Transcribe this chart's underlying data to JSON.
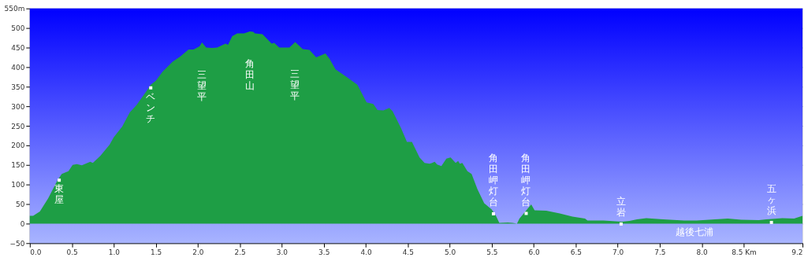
{
  "chart_data": {
    "type": "area",
    "xlim": [
      0,
      9.2
    ],
    "xticks": [
      {
        "value": 0,
        "label": "0.0"
      },
      {
        "value": 0.5,
        "label": "0.5"
      },
      {
        "value": 1,
        "label": "1.0"
      },
      {
        "value": 1.5,
        "label": "1.5"
      },
      {
        "value": 2,
        "label": "2.0"
      },
      {
        "value": 2.5,
        "label": "2.5"
      },
      {
        "value": 3,
        "label": "3.0"
      },
      {
        "value": 3.5,
        "label": "3.5"
      },
      {
        "value": 4,
        "label": "4.0"
      },
      {
        "value": 4.5,
        "label": "4.5"
      },
      {
        "value": 5,
        "label": "5.0"
      },
      {
        "value": 5.5,
        "label": "5.5"
      },
      {
        "value": 6,
        "label": "6.0"
      },
      {
        "value": 6.5,
        "label": "6.5"
      },
      {
        "value": 7,
        "label": "7.0"
      },
      {
        "value": 7.5,
        "label": "7.5"
      },
      {
        "value": 8,
        "label": "8.0"
      },
      {
        "value": 8.5,
        "label": "8.5 Km"
      },
      {
        "value": 9.2,
        "label": "9.2"
      }
    ],
    "ylim": [
      -50,
      550
    ],
    "yticks": [
      -50,
      0,
      50,
      100,
      150,
      200,
      250,
      300,
      350,
      400,
      450,
      500,
      {
        "value": 550,
        "label": "550m"
      }
    ],
    "grid": "y",
    "series": [
      {
        "color": "#1e9e45",
        "x": [
          0,
          0.04,
          0.12,
          0.22,
          0.33,
          0.38,
          0.46,
          0.51,
          0.56,
          0.62,
          0.72,
          0.75,
          0.84,
          0.95,
          1.0,
          1.1,
          1.19,
          1.27,
          1.38,
          1.44,
          1.5,
          1.58,
          1.7,
          1.79,
          1.89,
          1.95,
          2.02,
          2.05,
          2.1,
          2.17,
          2.23,
          2.33,
          2.36,
          2.41,
          2.47,
          2.55,
          2.62,
          2.66,
          2.68,
          2.77,
          2.88,
          2.91,
          2.97,
          3.03,
          3.09,
          3.16,
          3.25,
          3.33,
          3.41,
          3.52,
          3.57,
          3.64,
          3.77,
          3.9,
          4.01,
          4.09,
          4.14,
          4.21,
          4.28,
          4.32,
          4.42,
          4.49,
          4.55,
          4.64,
          4.7,
          4.76,
          4.79,
          4.82,
          4.85,
          4.9,
          4.96,
          5.01,
          5.04,
          5.07,
          5.1,
          5.12,
          5.15,
          5.21,
          5.26,
          5.33,
          5.41,
          5.5,
          5.55,
          5.59,
          5.69,
          5.75,
          5.8,
          5.83,
          5.9,
          5.97,
          6.01,
          6.15,
          6.31,
          6.46,
          6.61,
          6.64,
          6.83,
          7.05,
          7.14,
          7.23,
          7.34,
          7.54,
          7.79,
          7.94,
          8.16,
          8.31,
          8.47,
          8.68,
          8.77,
          8.96,
          9.1,
          9.2
        ],
        "values": [
          20,
          20,
          31,
          65,
          111,
          127,
          134,
          150,
          152,
          149,
          158,
          155,
          173,
          202,
          221,
          248,
          284,
          303,
          336,
          355,
          365,
          388,
          414,
          427,
          445,
          445,
          453,
          463,
          450,
          449,
          450,
          460,
          457,
          479,
          486,
          486,
          491,
          490,
          486,
          484,
          460,
          462,
          450,
          450,
          450,
          464,
          446,
          444,
          425,
          435,
          421,
          394,
          375,
          355,
          310,
          306,
          290,
          289,
          296,
          287,
          244,
          209,
          209,
          169,
          155,
          153,
          155,
          158,
          151,
          147,
          166,
          169,
          162,
          155,
          160,
          153,
          155,
          134,
          127,
          88,
          52,
          36,
          20,
          2,
          3,
          2,
          0,
          13,
          31,
          49,
          34,
          33,
          26,
          18,
          13,
          8,
          8,
          5,
          7,
          11,
          14,
          11,
          8,
          8,
          11,
          13,
          10,
          9,
          11,
          14,
          13,
          20
        ]
      },
      {
        "type": "scatter",
        "color": "#ffffff",
        "marker": "square",
        "x": [
          0.35,
          1.44,
          5.52,
          5.91,
          7.04,
          8.83
        ],
        "values": [
          111,
          347,
          25,
          26,
          -1,
          3
        ]
      }
    ],
    "annotations": [
      {
        "text": "東屋",
        "x": 0.35,
        "y": 111
      },
      {
        "text": "ベンチ",
        "x": 1.44,
        "y": 347
      },
      {
        "text": "三望平",
        "x": 2.05,
        "y": 463
      },
      {
        "text": "角田山",
        "x": 2.62,
        "y": 491
      },
      {
        "text": "三望平",
        "x": 3.16,
        "y": 464
      },
      {
        "text": "角田岬灯台",
        "x": 5.52,
        "y": 25
      },
      {
        "text": "角田岬灯台",
        "x": 5.91,
        "y": 26
      },
      {
        "text": "立岩",
        "x": 7.04,
        "y": -1
      },
      {
        "text": "五ヶ浜",
        "x": 8.83,
        "y": 3
      },
      "越後七浦"
    ]
  }
}
